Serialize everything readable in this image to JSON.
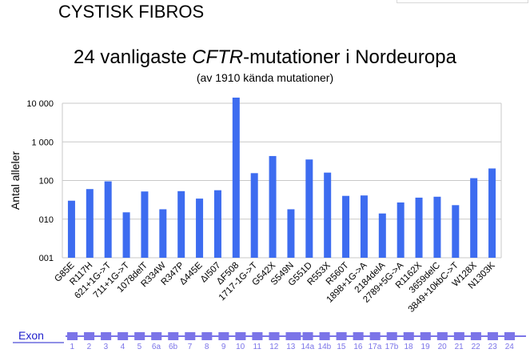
{
  "slide": {
    "header": "CYSTISK FIBROS"
  },
  "chart_data": {
    "type": "bar",
    "title_before": "24 vanligaste ",
    "title_italic": "CFTR",
    "title_after": "-mutationer i Nordeuropa",
    "subtitle": "(av 1910 kända mutationer)",
    "ylabel": "Antal alleler",
    "yscale": "log",
    "ylim": [
      1,
      10000
    ],
    "yticks": [
      {
        "value": 1,
        "label": "001"
      },
      {
        "value": 10,
        "label": "010"
      },
      {
        "value": 100,
        "label": "100"
      },
      {
        "value": 1000,
        "label": "1 000"
      },
      {
        "value": 10000,
        "label": "10 000"
      }
    ],
    "grid": true,
    "bar_color": "#3d6cf0",
    "categories": [
      "G85E",
      "R117H",
      "621+1G->T",
      "711+1G->T",
      "1078delT",
      "R334W",
      "R347P",
      "Δ445E",
      "ΔI507",
      "ΔF508",
      "1717-1G->T",
      "G542X",
      "S549N",
      "G551D",
      "R553X",
      "R560T",
      "1898+1G->A",
      "2184delA",
      "2789+5G->A",
      "R1162X",
      "3659delC",
      "3849+10kbC->T",
      "W128X",
      "N1303K"
    ],
    "values": [
      30,
      60,
      95,
      15,
      52,
      18,
      53,
      34,
      56,
      14000,
      155,
      430,
      18,
      350,
      160,
      40,
      41,
      14,
      27,
      36,
      38,
      23,
      115,
      205
    ]
  },
  "exon_track": {
    "label": "Exon",
    "color": "#7b74e8",
    "exons": [
      "1",
      "2",
      "3",
      "4",
      "5",
      "6a",
      "6b",
      "7",
      "8",
      "9",
      "10",
      "11",
      "12",
      "13",
      "14a",
      "14b",
      "15",
      "16",
      "17a",
      "17b",
      "18",
      "19",
      "20",
      "21",
      "22",
      "23",
      "24"
    ]
  }
}
